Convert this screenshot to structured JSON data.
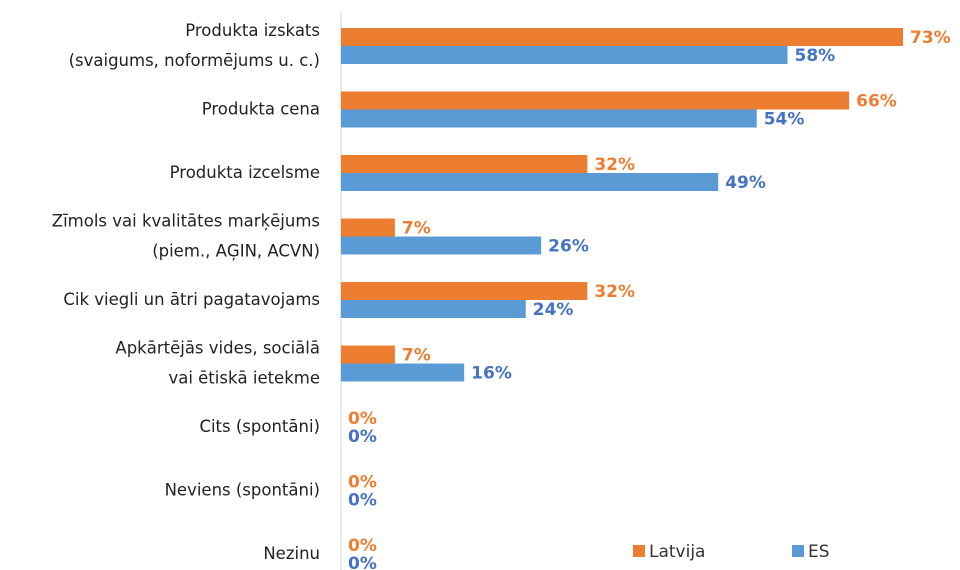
{
  "chart_data": {
    "type": "hbar",
    "categories": [
      "Produkta izskats\n(svaigums, noformējums u. c.)",
      "Produkta cena",
      "Produkta izcelsme",
      "Zīmols vai kvalitātes marķējums\n(piem., AĢIN, ACVN)",
      "Cik viegli un ātri pagatavojams",
      "Apkārtējās vides, sociālā\nvai ētiskā ietekme",
      "Cits (spontāni)",
      "Neviens (spontāni)",
      "Nezinu"
    ],
    "series": [
      {
        "name": "Latvija",
        "color": "#ed7d31",
        "label_color": "#ed7d31",
        "values": [
          73,
          66,
          32,
          7,
          32,
          7,
          0,
          0,
          0
        ],
        "value_labels": [
          "73%",
          "66%",
          "32%",
          "7%",
          "32%",
          "7%",
          "0%",
          "0%",
          "0%"
        ]
      },
      {
        "name": "ES",
        "color": "#5b9bd5",
        "label_color": "#4472c4",
        "values": [
          58,
          54,
          49,
          26,
          24,
          16,
          0,
          0,
          0
        ],
        "value_labels": [
          "58%",
          "54%",
          "49%",
          "26%",
          "24%",
          "16%",
          "0%",
          "0%",
          "0%"
        ]
      }
    ],
    "legend": "bottom-right"
  }
}
